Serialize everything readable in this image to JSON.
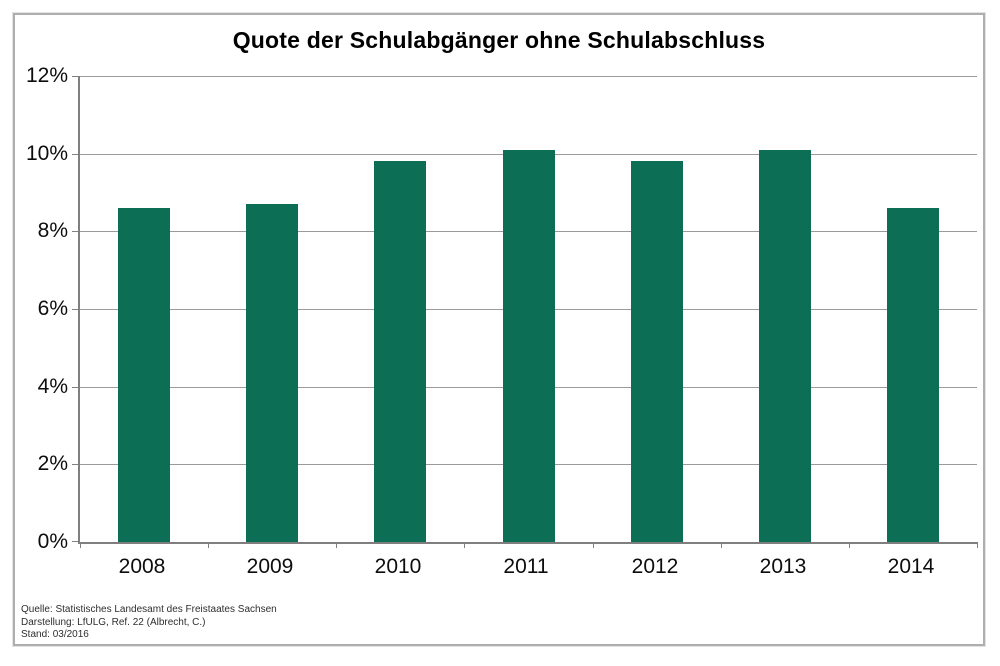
{
  "chart_data": {
    "type": "bar",
    "title": "Quote der Schulabgänger ohne Schulabschluss",
    "categories": [
      "2008",
      "2009",
      "2010",
      "2011",
      "2012",
      "2013",
      "2014"
    ],
    "values": [
      8.6,
      8.7,
      9.8,
      10.1,
      9.8,
      10.1,
      8.6
    ],
    "unit": "%",
    "xlabel": "",
    "ylabel": "",
    "ylim": [
      0,
      12
    ],
    "ytick_step": 2,
    "ytick_labels": [
      "0%",
      "2%",
      "4%",
      "6%",
      "8%",
      "10%",
      "12%"
    ],
    "grid": "horizontal-only",
    "legend_position": "none",
    "bar_color": "#0b6e55",
    "gridline_color": "#9b9b9b",
    "axis_color": "#7f7f7f"
  },
  "footer": {
    "lines": [
      "Quelle: Statistisches Landesamt des Freistaates Sachsen",
      "Darstellung: LfULG, Ref. 22 (Albrecht, C.)",
      "Stand: 03/2016"
    ]
  }
}
